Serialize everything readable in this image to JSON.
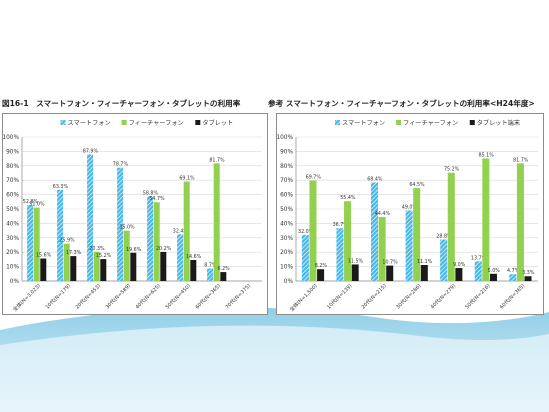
{
  "figures": [
    {
      "title": "図16-1　スマートフォン・フィーチャーフォン・タブレットの利用率"
    },
    {
      "title": "参考 スマートフォン・フィーチャーフォン・タブレットの利用率<H24年度>"
    }
  ],
  "colors": {
    "smartphone": "#4bb8e6",
    "feature_phone": "#92d050",
    "tablet": "#1a1a1a",
    "grid": "#d9d9d9",
    "frame": "#8c8c8c",
    "wave_dark": "#7ec6e4",
    "wave_light": "#d7eef8"
  },
  "chart_data": [
    {
      "type": "bar",
      "title": "",
      "xlabel": "",
      "ylabel": "",
      "ylim": [
        0,
        100
      ],
      "yticks": [
        "0%",
        "10%",
        "20%",
        "30%",
        "40%",
        "50%",
        "60%",
        "70%",
        "80%",
        "90%",
        "100%"
      ],
      "grid": true,
      "legend_position": "top",
      "categories": [
        "全体(N=3,023)",
        "10代(N=179)",
        "20代(N=453)",
        "30代(N=589)",
        "40代(N=625)",
        "50代(N=450)",
        "60代(N=365)",
        "70代(N=375)"
      ],
      "series": [
        {
          "name": "スマートフォン",
          "values": [
            52.8,
            63.3,
            87.9,
            78.7,
            58.8,
            32.4,
            8.7,
            null
          ],
          "labels": [
            "52.8%",
            "63.3%",
            "87.9%",
            "78.7%",
            "58.8%",
            "32.4%",
            "8.7%",
            ""
          ]
        },
        {
          "name": "フィーチャーフォン",
          "values": [
            51.0,
            25.9,
            20.3,
            35.0,
            54.7,
            69.1,
            81.7,
            null
          ],
          "labels": [
            "51.0%",
            "25.9%",
            "20.3%",
            "35.0%",
            "54.7%",
            "69.1%",
            "81.7%",
            ""
          ]
        },
        {
          "name": "タブレット",
          "values": [
            15.6,
            17.3,
            15.2,
            19.6,
            20.2,
            14.6,
            6.2,
            null
          ],
          "labels": [
            "15.6%",
            "17.3%",
            "15.2%",
            "19.6%",
            "20.2%",
            "14.6%",
            "6.2%",
            ""
          ]
        }
      ]
    },
    {
      "type": "bar",
      "title": "",
      "xlabel": "",
      "ylabel": "",
      "ylim": [
        0,
        100
      ],
      "yticks": [
        "0%",
        "10%",
        "20%",
        "30%",
        "40%",
        "50%",
        "60%",
        "70%",
        "80%",
        "90%",
        "100%"
      ],
      "grid": true,
      "legend_position": "top",
      "categories": [
        "全体(N=1,500)",
        "10代(N=139)",
        "20代(N=215)",
        "30代(N=286)",
        "40代(N=279)",
        "50代(N=216)",
        "60代(N=365)"
      ],
      "series": [
        {
          "name": "スマートフォン",
          "values": [
            32.0,
            36.7,
            68.4,
            49.0,
            28.8,
            13.7,
            4.7
          ],
          "labels": [
            "32.0%",
            "36.7%",
            "68.4%",
            "49.0%",
            "28.8%",
            "13.7%",
            "4.7%"
          ]
        },
        {
          "name": "フィーチャーフォン",
          "values": [
            69.7,
            55.4,
            44.4,
            64.5,
            75.2,
            85.1,
            81.7
          ],
          "labels": [
            "69.7%",
            "55.4%",
            "44.4%",
            "64.5%",
            "75.2%",
            "85.1%",
            "81.7%"
          ]
        },
        {
          "name": "タブレット端末",
          "values": [
            8.2,
            11.5,
            10.7,
            11.1,
            9.0,
            5.0,
            3.3
          ],
          "labels": [
            "8.2%",
            "11.5%",
            "10.7%",
            "11.1%",
            "9.0%",
            "5.0%",
            "3.3%"
          ]
        }
      ]
    }
  ]
}
